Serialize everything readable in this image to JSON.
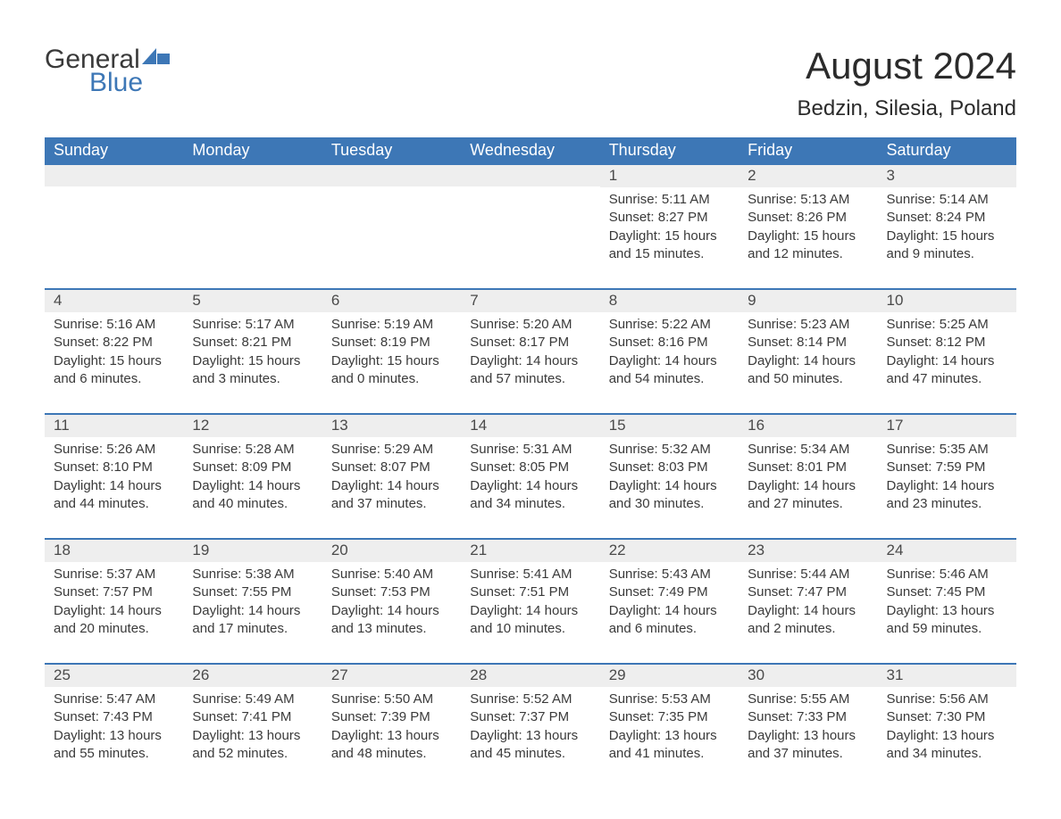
{
  "logo": {
    "text1": "General",
    "text2": "Blue",
    "icon_color": "#3d77b6"
  },
  "title": "August 2024",
  "location": "Bedzin, Silesia, Poland",
  "header_bg": "#3d77b6",
  "header_fg": "#ffffff",
  "daynum_bg": "#eeeeee",
  "text_color": "#3a3a3a",
  "row_separator_color": "#3d77b6",
  "day_label_fontsize": 18,
  "title_fontsize": 42,
  "location_fontsize": 24,
  "body_fontsize": 15,
  "day_names": [
    "Sunday",
    "Monday",
    "Tuesday",
    "Wednesday",
    "Thursday",
    "Friday",
    "Saturday"
  ],
  "weeks": [
    [
      null,
      null,
      null,
      null,
      {
        "n": "1",
        "sunrise": "5:11 AM",
        "sunset": "8:27 PM",
        "daylight": "15 hours and 15 minutes."
      },
      {
        "n": "2",
        "sunrise": "5:13 AM",
        "sunset": "8:26 PM",
        "daylight": "15 hours and 12 minutes."
      },
      {
        "n": "3",
        "sunrise": "5:14 AM",
        "sunset": "8:24 PM",
        "daylight": "15 hours and 9 minutes."
      }
    ],
    [
      {
        "n": "4",
        "sunrise": "5:16 AM",
        "sunset": "8:22 PM",
        "daylight": "15 hours and 6 minutes."
      },
      {
        "n": "5",
        "sunrise": "5:17 AM",
        "sunset": "8:21 PM",
        "daylight": "15 hours and 3 minutes."
      },
      {
        "n": "6",
        "sunrise": "5:19 AM",
        "sunset": "8:19 PM",
        "daylight": "15 hours and 0 minutes."
      },
      {
        "n": "7",
        "sunrise": "5:20 AM",
        "sunset": "8:17 PM",
        "daylight": "14 hours and 57 minutes."
      },
      {
        "n": "8",
        "sunrise": "5:22 AM",
        "sunset": "8:16 PM",
        "daylight": "14 hours and 54 minutes."
      },
      {
        "n": "9",
        "sunrise": "5:23 AM",
        "sunset": "8:14 PM",
        "daylight": "14 hours and 50 minutes."
      },
      {
        "n": "10",
        "sunrise": "5:25 AM",
        "sunset": "8:12 PM",
        "daylight": "14 hours and 47 minutes."
      }
    ],
    [
      {
        "n": "11",
        "sunrise": "5:26 AM",
        "sunset": "8:10 PM",
        "daylight": "14 hours and 44 minutes."
      },
      {
        "n": "12",
        "sunrise": "5:28 AM",
        "sunset": "8:09 PM",
        "daylight": "14 hours and 40 minutes."
      },
      {
        "n": "13",
        "sunrise": "5:29 AM",
        "sunset": "8:07 PM",
        "daylight": "14 hours and 37 minutes."
      },
      {
        "n": "14",
        "sunrise": "5:31 AM",
        "sunset": "8:05 PM",
        "daylight": "14 hours and 34 minutes."
      },
      {
        "n": "15",
        "sunrise": "5:32 AM",
        "sunset": "8:03 PM",
        "daylight": "14 hours and 30 minutes."
      },
      {
        "n": "16",
        "sunrise": "5:34 AM",
        "sunset": "8:01 PM",
        "daylight": "14 hours and 27 minutes."
      },
      {
        "n": "17",
        "sunrise": "5:35 AM",
        "sunset": "7:59 PM",
        "daylight": "14 hours and 23 minutes."
      }
    ],
    [
      {
        "n": "18",
        "sunrise": "5:37 AM",
        "sunset": "7:57 PM",
        "daylight": "14 hours and 20 minutes."
      },
      {
        "n": "19",
        "sunrise": "5:38 AM",
        "sunset": "7:55 PM",
        "daylight": "14 hours and 17 minutes."
      },
      {
        "n": "20",
        "sunrise": "5:40 AM",
        "sunset": "7:53 PM",
        "daylight": "14 hours and 13 minutes."
      },
      {
        "n": "21",
        "sunrise": "5:41 AM",
        "sunset": "7:51 PM",
        "daylight": "14 hours and 10 minutes."
      },
      {
        "n": "22",
        "sunrise": "5:43 AM",
        "sunset": "7:49 PM",
        "daylight": "14 hours and 6 minutes."
      },
      {
        "n": "23",
        "sunrise": "5:44 AM",
        "sunset": "7:47 PM",
        "daylight": "14 hours and 2 minutes."
      },
      {
        "n": "24",
        "sunrise": "5:46 AM",
        "sunset": "7:45 PM",
        "daylight": "13 hours and 59 minutes."
      }
    ],
    [
      {
        "n": "25",
        "sunrise": "5:47 AM",
        "sunset": "7:43 PM",
        "daylight": "13 hours and 55 minutes."
      },
      {
        "n": "26",
        "sunrise": "5:49 AM",
        "sunset": "7:41 PM",
        "daylight": "13 hours and 52 minutes."
      },
      {
        "n": "27",
        "sunrise": "5:50 AM",
        "sunset": "7:39 PM",
        "daylight": "13 hours and 48 minutes."
      },
      {
        "n": "28",
        "sunrise": "5:52 AM",
        "sunset": "7:37 PM",
        "daylight": "13 hours and 45 minutes."
      },
      {
        "n": "29",
        "sunrise": "5:53 AM",
        "sunset": "7:35 PM",
        "daylight": "13 hours and 41 minutes."
      },
      {
        "n": "30",
        "sunrise": "5:55 AM",
        "sunset": "7:33 PM",
        "daylight": "13 hours and 37 minutes."
      },
      {
        "n": "31",
        "sunrise": "5:56 AM",
        "sunset": "7:30 PM",
        "daylight": "13 hours and 34 minutes."
      }
    ]
  ],
  "labels": {
    "sunrise": "Sunrise",
    "sunset": "Sunset",
    "daylight": "Daylight"
  }
}
